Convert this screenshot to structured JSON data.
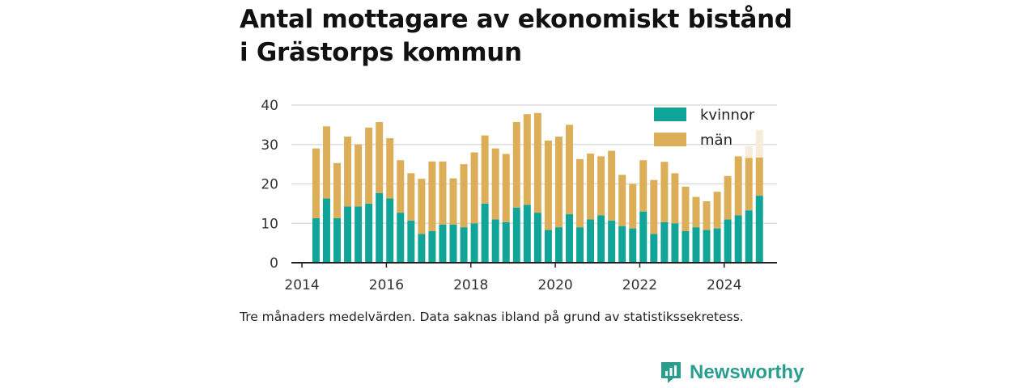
{
  "title_lines": [
    "Antal mottagare av ekonomiskt bistånd",
    "i Grästorps kommun"
  ],
  "note": "Tre månaders medelvärden. Data saknas ibland på grund av statistikssekretess.",
  "brand": "Newsworthy",
  "colors": {
    "kvinnor": "#11a599",
    "man": "#dcae58",
    "man_faded": "#f6ecd8",
    "grid": "#dddddd",
    "axis": "#222222",
    "brand": "#2a9d8f"
  },
  "chart_data": {
    "type": "bar",
    "stacked": true,
    "ylim": [
      0,
      40
    ],
    "yticks": [
      "0",
      "10",
      "20",
      "30",
      "40"
    ],
    "xticks": [
      "2014",
      "2016",
      "2018",
      "2020",
      "2022",
      "2024"
    ],
    "xlim": [
      "2013-10",
      "2025-04"
    ],
    "legend_position": "top-right",
    "grid": true,
    "x": [
      "2014-05",
      "2014-08",
      "2014-11",
      "2015-02",
      "2015-05",
      "2015-08",
      "2015-11",
      "2016-02",
      "2016-05",
      "2016-08",
      "2016-11",
      "2017-02",
      "2017-05",
      "2017-08",
      "2017-11",
      "2018-02",
      "2018-05",
      "2018-08",
      "2018-11",
      "2019-02",
      "2019-05",
      "2019-08",
      "2019-11",
      "2020-02",
      "2020-05",
      "2020-08",
      "2020-11",
      "2021-02",
      "2021-05",
      "2021-08",
      "2021-11",
      "2022-02",
      "2022-05",
      "2022-08",
      "2022-11",
      "2023-02",
      "2023-05",
      "2023-08",
      "2023-11",
      "2024-02",
      "2024-05",
      "2024-08",
      "2024-11"
    ],
    "series": [
      {
        "name": "kvinnor",
        "values": [
          11.3,
          16.3,
          11.3,
          14.3,
          14.3,
          15.0,
          17.7,
          16.3,
          12.7,
          10.7,
          7.3,
          8.0,
          9.7,
          9.7,
          9.0,
          10.0,
          15.0,
          11.0,
          10.3,
          14.0,
          14.7,
          12.7,
          8.3,
          9.0,
          12.3,
          9.0,
          11.0,
          12.0,
          10.7,
          9.3,
          8.7,
          13.0,
          7.3,
          10.3,
          10.0,
          8.0,
          9.0,
          8.3,
          8.7,
          11.0,
          12.0,
          13.3,
          17.0
        ]
      },
      {
        "name": "män",
        "values": [
          17.7,
          18.3,
          14.0,
          17.7,
          15.7,
          19.3,
          18.0,
          15.3,
          13.3,
          12.0,
          14.0,
          17.7,
          16.0,
          11.7,
          16.0,
          18.0,
          17.3,
          18.0,
          17.3,
          21.7,
          23.0,
          25.3,
          22.7,
          23.0,
          22.7,
          17.3,
          16.7,
          15.0,
          17.7,
          13.0,
          11.3,
          13.0,
          13.7,
          15.3,
          12.7,
          11.3,
          7.7,
          7.3,
          9.3,
          11.0,
          15.0,
          13.3,
          9.7
        ]
      }
    ],
    "faded_extension": {
      "name": "män",
      "x": [
        "2024-08",
        "2024-11"
      ],
      "values": [
        3.0,
        7.0
      ]
    }
  }
}
